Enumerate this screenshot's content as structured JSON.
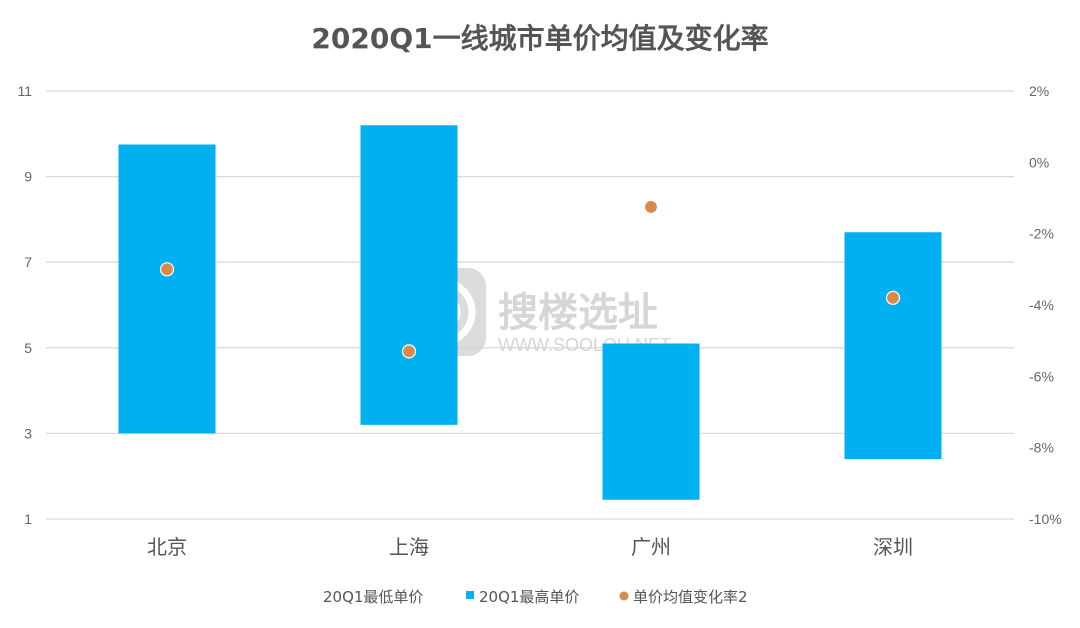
{
  "watermark": {
    "brand": "搜楼选址",
    "url": "WWW.SOOLOU.NET"
  },
  "chart_data": {
    "type": "bar",
    "title": "2020Q1一线城市单价均值及变化率",
    "categories": [
      "北京",
      "上海",
      "广州",
      "深圳"
    ],
    "left_axis": {
      "ylim": [
        1,
        11
      ],
      "ticks": [
        "1",
        "3",
        "5",
        "7",
        "9",
        "11"
      ]
    },
    "right_axis": {
      "ylim": [
        -10,
        2
      ],
      "ticks": [
        "-10%",
        "-8%",
        "-6%",
        "-4%",
        "-2%",
        "0%",
        "2%"
      ]
    },
    "grid": true,
    "legend_position": "bottom",
    "series": [
      {
        "name": "20Q1最低单价",
        "kind": "floating-bar-base",
        "values": [
          3.0,
          3.2,
          1.45,
          2.4
        ]
      },
      {
        "name": "20Q1最高单价",
        "kind": "floating-bar-top",
        "color": "#00b0f0",
        "values": [
          9.75,
          10.2,
          5.1,
          7.7
        ]
      },
      {
        "name": "单价均值变化率2",
        "kind": "scatter",
        "axis": "right",
        "color": "#d9894a",
        "values": [
          -3.0,
          -5.3,
          -1.25,
          -3.8
        ]
      }
    ]
  }
}
